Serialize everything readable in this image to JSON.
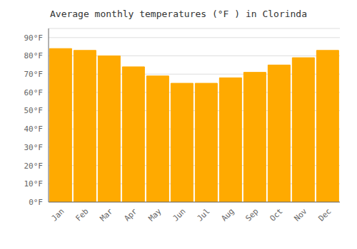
{
  "chart_data": {
    "type": "bar",
    "title": "Average monthly temperatures (°F ) in Clorinda",
    "categories": [
      "Jan",
      "Feb",
      "Mar",
      "Apr",
      "May",
      "Jun",
      "Jul",
      "Aug",
      "Sep",
      "Oct",
      "Nov",
      "Dec"
    ],
    "values": [
      84,
      83,
      80,
      74,
      69,
      65,
      65,
      68,
      71,
      75,
      79,
      83
    ],
    "color": "#FFAA00",
    "ylim": [
      0,
      95
    ],
    "yticks": [
      {
        "value": 0,
        "label": "0°F"
      },
      {
        "value": 10,
        "label": "10°F"
      },
      {
        "value": 20,
        "label": "20°F"
      },
      {
        "value": 30,
        "label": "30°F"
      },
      {
        "value": 40,
        "label": "40°F"
      },
      {
        "value": 50,
        "label": "50°F"
      },
      {
        "value": 60,
        "label": "60°F"
      },
      {
        "value": 70,
        "label": "70°F"
      },
      {
        "value": 80,
        "label": "80°F"
      },
      {
        "value": 90,
        "label": "90°F"
      }
    ],
    "grid": true
  }
}
